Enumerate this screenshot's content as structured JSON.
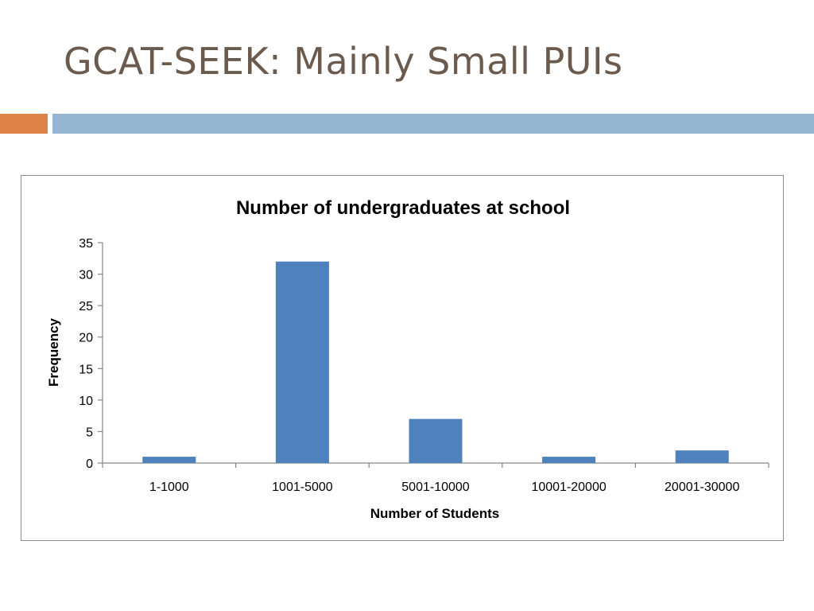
{
  "slide": {
    "title": "GCAT-SEEK: Mainly Small PUIs",
    "colors": {
      "title": "#6b5a4e",
      "accent_orange": "#dd8347",
      "accent_blue": "#94b6d2"
    }
  },
  "chart_data": {
    "type": "bar",
    "title": "Number of undergraduates at school",
    "xlabel": "Number of Students",
    "ylabel": "Frequency",
    "categories": [
      "1-1000",
      "1001-5000",
      "5001-10000",
      "10001-20000",
      "20001-30000"
    ],
    "values": [
      1,
      32,
      7,
      1,
      2
    ],
    "ylim": [
      0,
      35
    ],
    "yticks": [
      0,
      5,
      10,
      15,
      20,
      25,
      30,
      35
    ],
    "grid": false,
    "legend": "none",
    "bar_color": "#4f81bd"
  }
}
